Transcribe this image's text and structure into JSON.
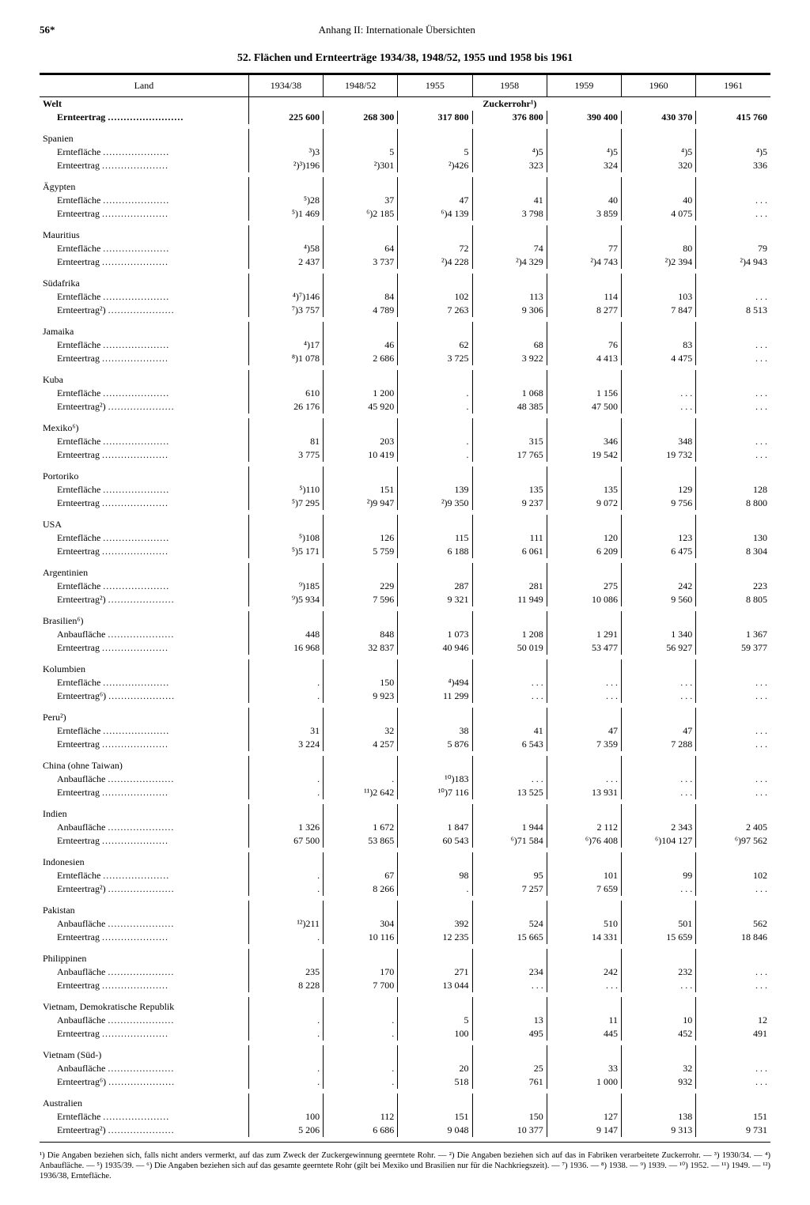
{
  "page_number": "56*",
  "header": "Anhang II: Internationale Übersichten",
  "title": "52. Flächen und Ernteerträge 1934/38, 1948/52, 1955 und 1958 bis 1961",
  "columns": [
    "Land",
    "1934/38",
    "1948/52",
    "1955",
    "1958",
    "1959",
    "1960",
    "1961"
  ],
  "section": "Zuckerrohr¹)",
  "world_label": "Welt",
  "world_sub": "Ernteertrag",
  "world_vals": [
    "225 600",
    "268 300",
    "317 800",
    "376 800",
    "390 400",
    "430 370",
    "415 760"
  ],
  "rows": [
    {
      "c": "Spanien",
      "s": [
        "Erntefläche",
        "Ernteertrag"
      ],
      "v": [
        [
          "³)3",
          "5",
          "5",
          "⁴)5",
          "⁴)5",
          "⁴)5",
          "⁴)5"
        ],
        [
          "²)³)196",
          "²)301",
          "²)426",
          "323",
          "324",
          "320",
          "336"
        ]
      ]
    },
    {
      "c": "Ägypten",
      "s": [
        "Erntefläche",
        "Ernteertrag"
      ],
      "v": [
        [
          "⁵)28",
          "37",
          "47",
          "41",
          "40",
          "40",
          ". . ."
        ],
        [
          "⁵)1 469",
          "⁶)2 185",
          "⁶)4 139",
          "3 798",
          "3 859",
          "4 075",
          ". . ."
        ]
      ]
    },
    {
      "c": "Mauritius",
      "s": [
        "Erntefläche",
        "Ernteertrag"
      ],
      "v": [
        [
          "⁴)58",
          "64",
          "72",
          "74",
          "77",
          "80",
          "79"
        ],
        [
          "2 437",
          "3 737",
          "²)4 228",
          "²)4 329",
          "²)4 743",
          "²)2 394",
          "²)4 943"
        ]
      ]
    },
    {
      "c": "Südafrika",
      "s": [
        "Erntefläche",
        "Ernteertrag²)"
      ],
      "v": [
        [
          "⁴)⁷)146",
          "84",
          "102",
          "113",
          "114",
          "103",
          ". . ."
        ],
        [
          "⁷)3 757",
          "4 789",
          "7 263",
          "9 306",
          "8 277",
          "7 847",
          "8 513"
        ]
      ]
    },
    {
      "c": "Jamaika",
      "s": [
        "Erntefläche",
        "Ernteertrag"
      ],
      "v": [
        [
          "⁴)17",
          "46",
          "62",
          "68",
          "76",
          "83",
          ". . ."
        ],
        [
          "⁸)1 078",
          "2 686",
          "3 725",
          "3 922",
          "4 413",
          "4 475",
          ". . ."
        ]
      ]
    },
    {
      "c": "Kuba",
      "s": [
        "Erntefläche",
        "Ernteertrag²)"
      ],
      "v": [
        [
          "610",
          "1 200",
          ".",
          "1 068",
          "1 156",
          ". . .",
          ". . ."
        ],
        [
          "26 176",
          "45 920",
          ".",
          "48 385",
          "47 500",
          ". . .",
          ". . ."
        ]
      ]
    },
    {
      "c": "Mexiko⁶)",
      "s": [
        "Erntefläche",
        "Ernteertrag"
      ],
      "v": [
        [
          "81",
          "203",
          ".",
          "315",
          "346",
          "348",
          ". . ."
        ],
        [
          "3 775",
          "10 419",
          ".",
          "17 765",
          "19 542",
          "19 732",
          ". . ."
        ]
      ]
    },
    {
      "c": "Portoriko",
      "s": [
        "Erntefläche",
        "Ernteertrag"
      ],
      "v": [
        [
          "⁵)110",
          "151",
          "139",
          "135",
          "135",
          "129",
          "128"
        ],
        [
          "⁵)7 295",
          "²)9 947",
          "²)9 350",
          "9 237",
          "9 072",
          "9 756",
          "8 800"
        ]
      ]
    },
    {
      "c": "USA",
      "s": [
        "Erntefläche",
        "Ernteertrag"
      ],
      "v": [
        [
          "⁵)108",
          "126",
          "115",
          "111",
          "120",
          "123",
          "130"
        ],
        [
          "⁵)5 171",
          "5 759",
          "6 188",
          "6 061",
          "6 209",
          "6 475",
          "8 304"
        ]
      ]
    },
    {
      "c": "Argentinien",
      "s": [
        "Erntefläche",
        "Ernteertrag²)"
      ],
      "v": [
        [
          "⁹)185",
          "229",
          "287",
          "281",
          "275",
          "242",
          "223"
        ],
        [
          "⁹)5 934",
          "7 596",
          "9 321",
          "11 949",
          "10 086",
          "9 560",
          "8 805"
        ]
      ]
    },
    {
      "c": "Brasilien⁶)",
      "s": [
        "Anbaufläche",
        "Ernteertrag"
      ],
      "v": [
        [
          "448",
          "848",
          "1 073",
          "1 208",
          "1 291",
          "1 340",
          "1 367"
        ],
        [
          "16 968",
          "32 837",
          "40 946",
          "50 019",
          "53 477",
          "56 927",
          "59 377"
        ]
      ]
    },
    {
      "c": "Kolumbien",
      "s": [
        "Erntefläche",
        "Ernteertrag⁶)"
      ],
      "v": [
        [
          ".",
          "150",
          "⁴)494",
          ". . .",
          ". . .",
          ". . .",
          ". . ."
        ],
        [
          ".",
          "9 923",
          "11 299",
          ". . .",
          ". . .",
          ". . .",
          ". . ."
        ]
      ]
    },
    {
      "c": "Peru²)",
      "s": [
        "Erntefläche",
        "Ernteertrag"
      ],
      "v": [
        [
          "31",
          "32",
          "38",
          "41",
          "47",
          "47",
          ". . ."
        ],
        [
          "3 224",
          "4 257",
          "5 876",
          "6 543",
          "7 359",
          "7 288",
          ". . ."
        ]
      ]
    },
    {
      "c": "China (ohne Taiwan)",
      "s": [
        "Anbaufläche",
        "Ernteertrag"
      ],
      "v": [
        [
          ".",
          ".",
          "¹⁰)183",
          ". . .",
          ". . .",
          ". . .",
          ". . ."
        ],
        [
          ".",
          "¹¹)2 642",
          "¹⁰)7 116",
          "13 525",
          "13 931",
          ". . .",
          ". . ."
        ]
      ]
    },
    {
      "c": "Indien",
      "s": [
        "Anbaufläche",
        "Ernteertrag"
      ],
      "v": [
        [
          "1 326",
          "1 672",
          "1 847",
          "1 944",
          "2 112",
          "2 343",
          "2 405"
        ],
        [
          "67 500",
          "53 865",
          "60 543",
          "⁶)71 584",
          "⁶)76 408",
          "⁶)104 127",
          "⁶)97 562"
        ]
      ]
    },
    {
      "c": "Indonesien",
      "s": [
        "Erntefläche",
        "Ernteertrag²)"
      ],
      "v": [
        [
          ".",
          "67",
          "98",
          "95",
          "101",
          "99",
          "102"
        ],
        [
          ".",
          "8 266",
          ".",
          "7 257",
          "7 659",
          ". . .",
          ". . ."
        ]
      ]
    },
    {
      "c": "Pakistan",
      "s": [
        "Anbaufläche",
        "Ernteertrag"
      ],
      "v": [
        [
          "¹²)211",
          "304",
          "392",
          "524",
          "510",
          "501",
          "562"
        ],
        [
          ".",
          "10 116",
          "12 235",
          "15 665",
          "14 331",
          "15 659",
          "18 846"
        ]
      ]
    },
    {
      "c": "Philippinen",
      "s": [
        "Anbaufläche",
        "Ernteertrag"
      ],
      "v": [
        [
          "235",
          "170",
          "271",
          "234",
          "242",
          "232",
          ". . ."
        ],
        [
          "8 228",
          "7 700",
          "13 044",
          ". . .",
          ". . .",
          ". . .",
          ". . ."
        ]
      ]
    },
    {
      "c": "Vietnam, Demokratische Republik",
      "s": [
        "Anbaufläche",
        "Ernteertrag"
      ],
      "v": [
        [
          ".",
          ".",
          "5",
          "13",
          "11",
          "10",
          "12"
        ],
        [
          ".",
          ".",
          "100",
          "495",
          "445",
          "452",
          "491"
        ]
      ]
    },
    {
      "c": "Vietnam (Süd-)",
      "s": [
        "Anbaufläche",
        "Ernteertrag⁶)"
      ],
      "v": [
        [
          ".",
          ".",
          "20",
          "25",
          "33",
          "32",
          ". . ."
        ],
        [
          ".",
          ".",
          "518",
          "761",
          "1 000",
          "932",
          ". . ."
        ]
      ]
    },
    {
      "c": "Australien",
      "s": [
        "Erntefläche",
        "Ernteertrag²)"
      ],
      "v": [
        [
          "100",
          "112",
          "151",
          "150",
          "127",
          "138",
          "151"
        ],
        [
          "5 206",
          "6 686",
          "9 048",
          "10 377",
          "9 147",
          "9 313",
          "9 731"
        ]
      ]
    }
  ],
  "footnotes": "¹) Die Angaben beziehen sich, falls nicht anders vermerkt, auf das zum Zweck der Zuckergewinnung geerntete Rohr. — ²) Die Angaben beziehen sich auf das in Fabriken verarbeitete Zuckerrohr. — ³) 1930/34. — ⁴) Anbaufläche. — ⁵) 1935/39. — ⁶) Die Angaben beziehen sich auf das gesamte geerntete Rohr (gilt bei Mexiko und Brasilien nur für die Nachkriegszeit). — ⁷) 1936. — ⁸) 1938. — ⁹) 1939. — ¹⁰) 1952. — ¹¹) 1949. — ¹²) 1936/38, Erntefläche."
}
